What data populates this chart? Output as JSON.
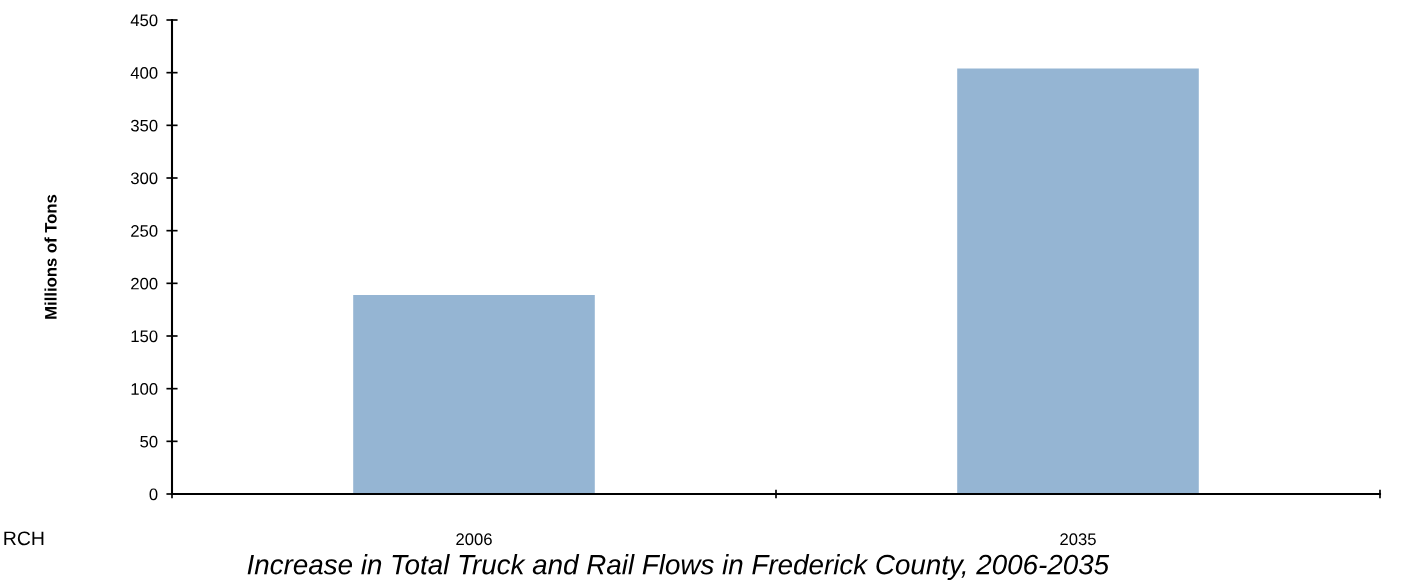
{
  "chart_data": {
    "type": "bar",
    "title": "Increase in Total Truck and Rail Flows in Frederick County, 2006-2035",
    "ylabel": "Millions of Tons",
    "categories": [
      "2006",
      "2035"
    ],
    "values": [
      189,
      404
    ],
    "color": "#95b5d3",
    "ylim": [
      0,
      450
    ],
    "yticks": [
      0,
      50,
      100,
      150,
      200,
      250,
      300,
      350,
      400,
      450
    ],
    "grid": false,
    "legend": false,
    "annotations": [
      "RCH"
    ]
  }
}
